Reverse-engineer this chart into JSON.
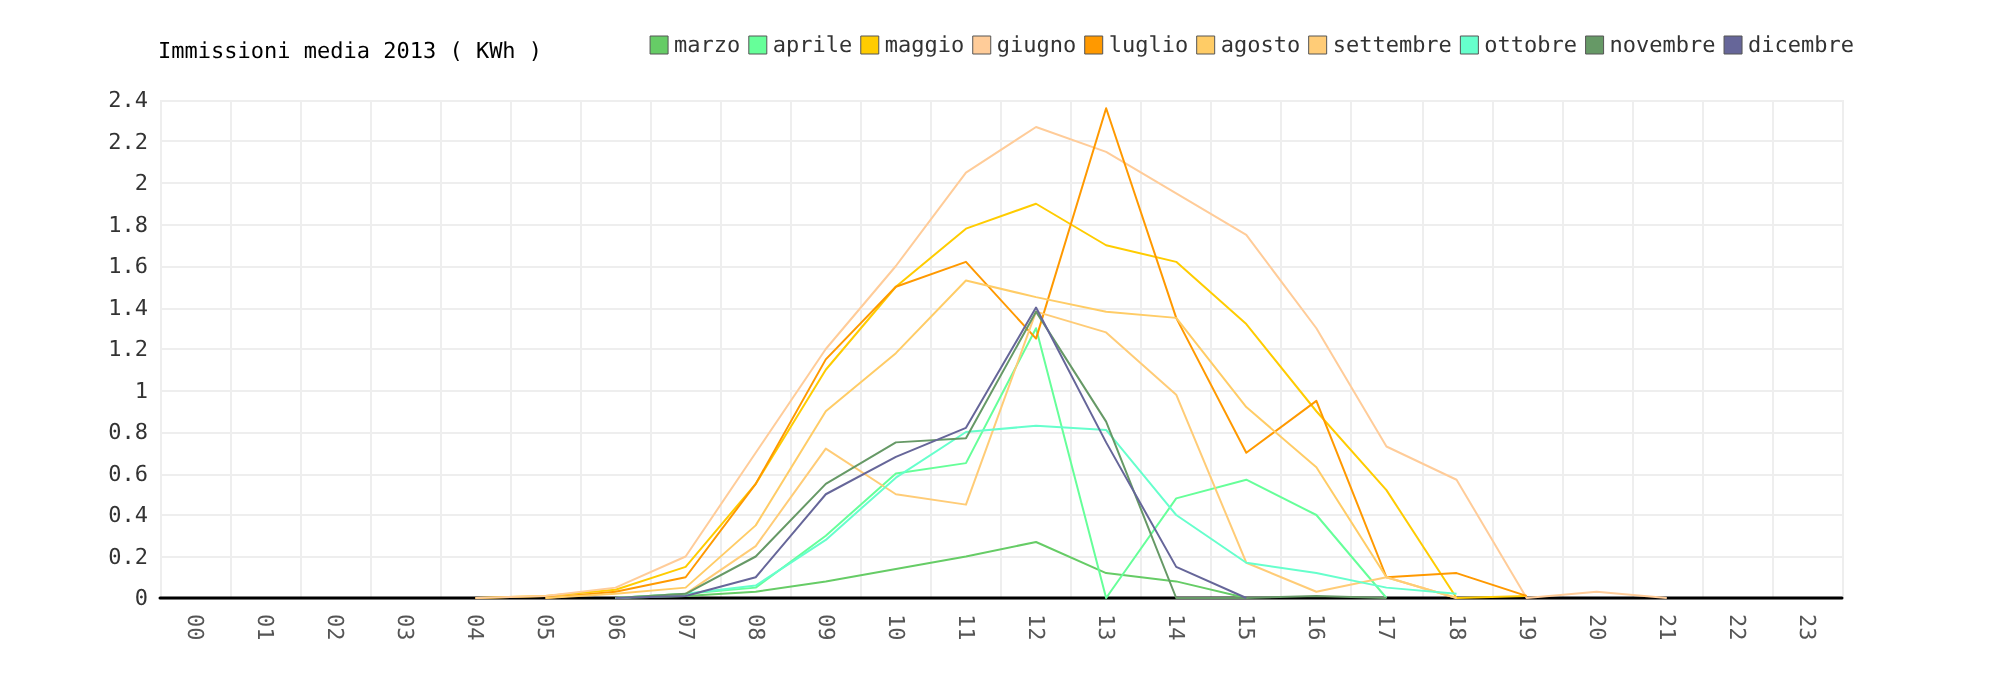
{
  "chart_data": {
    "type": "line",
    "title": "Immissioni media 2013 ( KWh )",
    "categories": [
      "00",
      "01",
      "02",
      "03",
      "04",
      "05",
      "06",
      "07",
      "08",
      "09",
      "10",
      "11",
      "12",
      "13",
      "14",
      "15",
      "16",
      "17",
      "18",
      "19",
      "20",
      "21",
      "22",
      "23"
    ],
    "ylim": [
      0,
      2.4
    ],
    "yticks": [
      0,
      0.2,
      0.4,
      0.6,
      0.8,
      1,
      1.2,
      1.4,
      1.6,
      1.8,
      2,
      2.2,
      2.4
    ],
    "grid": true,
    "legend": "top right",
    "marker": "none",
    "line_style": "solid",
    "series": [
      {
        "name": "marzo",
        "color": "#66cc66",
        "values": [
          null,
          null,
          null,
          null,
          null,
          null,
          0,
          0.01,
          0.03,
          0.08,
          0.14,
          0.2,
          0.27,
          0.12,
          0.08,
          0,
          null,
          null,
          null,
          null,
          null,
          null,
          null,
          null
        ]
      },
      {
        "name": "aprile",
        "color": "#66ff99",
        "values": [
          null,
          null,
          null,
          null,
          null,
          null,
          0,
          0.02,
          0.05,
          0.3,
          0.6,
          0.65,
          1.3,
          0,
          0.48,
          0.57,
          0.4,
          0,
          null,
          null,
          null,
          null,
          null,
          null
        ]
      },
      {
        "name": "maggio",
        "color": "#ffcc00",
        "values": [
          null,
          null,
          null,
          null,
          0,
          0.01,
          0.04,
          0.15,
          0.55,
          1.1,
          1.5,
          1.78,
          1.9,
          1.7,
          1.62,
          1.32,
          0.9,
          0.52,
          0,
          0.01,
          null,
          null,
          null,
          null
        ]
      },
      {
        "name": "giugno",
        "color": "#ffcc99",
        "values": [
          null,
          null,
          null,
          null,
          0,
          0.01,
          0.05,
          0.2,
          0.7,
          1.2,
          1.6,
          2.05,
          2.27,
          2.15,
          1.95,
          1.75,
          1.3,
          0.73,
          0.57,
          0,
          0.03,
          0,
          null,
          null
        ]
      },
      {
        "name": "luglio",
        "color": "#ff9900",
        "values": [
          null,
          null,
          null,
          null,
          null,
          0,
          0.03,
          0.1,
          0.55,
          1.15,
          1.5,
          1.62,
          1.25,
          2.36,
          1.35,
          0.7,
          0.95,
          0.1,
          0.12,
          0.01,
          null,
          null,
          null,
          null
        ]
      },
      {
        "name": "agosto",
        "color": "#ffcc66",
        "values": [
          null,
          null,
          null,
          null,
          null,
          0,
          0.02,
          0.05,
          0.35,
          0.9,
          1.18,
          1.53,
          1.45,
          1.38,
          1.35,
          0.92,
          0.63,
          0.1,
          0,
          null,
          null,
          null,
          null,
          null
        ]
      },
      {
        "name": "settembre",
        "color": "#ffcc77",
        "values": [
          null,
          null,
          null,
          null,
          null,
          null,
          0,
          0.02,
          0.25,
          0.72,
          0.5,
          0.45,
          1.38,
          1.28,
          0.98,
          0.17,
          0.03,
          0.1,
          0,
          null,
          null,
          null,
          null,
          null
        ]
      },
      {
        "name": "ottobre",
        "color": "#66ffcc",
        "values": [
          null,
          null,
          null,
          null,
          null,
          null,
          0,
          0.02,
          0.06,
          0.28,
          0.58,
          0.8,
          0.83,
          0.81,
          0.4,
          0.17,
          0.12,
          0.05,
          0.02,
          null,
          null,
          null,
          null,
          null
        ]
      },
      {
        "name": "novembre",
        "color": "#669966",
        "values": [
          null,
          null,
          null,
          null,
          null,
          null,
          0,
          0.02,
          0.2,
          0.55,
          0.75,
          0.77,
          1.38,
          0.85,
          0,
          0,
          0.01,
          0,
          null,
          null,
          null,
          null,
          null,
          null
        ]
      },
      {
        "name": "dicembre",
        "color": "#666699",
        "values": [
          null,
          null,
          null,
          null,
          null,
          null,
          0,
          0.01,
          0.1,
          0.5,
          0.68,
          0.82,
          1.4,
          0.75,
          0.15,
          0,
          null,
          null,
          null,
          null,
          null,
          null,
          null,
          null
        ]
      }
    ]
  }
}
